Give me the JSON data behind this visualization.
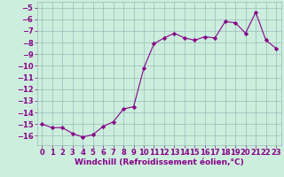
{
  "x": [
    0,
    1,
    2,
    3,
    4,
    5,
    6,
    7,
    8,
    9,
    10,
    11,
    12,
    13,
    14,
    15,
    16,
    17,
    18,
    19,
    20,
    21,
    22,
    23
  ],
  "y": [
    -15.0,
    -15.3,
    -15.3,
    -15.8,
    -16.1,
    -15.9,
    -15.2,
    -14.8,
    -13.7,
    -13.5,
    -10.2,
    -8.1,
    -7.6,
    -7.2,
    -7.6,
    -7.8,
    -7.5,
    -7.6,
    -6.2,
    -6.3,
    -7.2,
    -5.4,
    -7.8,
    -8.5
  ],
  "line_color": "#880088",
  "marker": "D",
  "marker_size": 2.2,
  "bg_color": "#cceedd",
  "grid_color": "#99bbbb",
  "xlabel": "Windchill (Refroidissement éolien,°C)",
  "ylim": [
    -16.8,
    -4.5
  ],
  "xlim": [
    -0.5,
    23.5
  ],
  "yticks": [
    -16,
    -15,
    -14,
    -13,
    -12,
    -11,
    -10,
    -9,
    -8,
    -7,
    -6,
    -5
  ],
  "xticks": [
    0,
    1,
    2,
    3,
    4,
    5,
    6,
    7,
    8,
    9,
    10,
    11,
    12,
    13,
    14,
    15,
    16,
    17,
    18,
    19,
    20,
    21,
    22,
    23
  ],
  "tick_fontsize": 6.0,
  "xlabel_fontsize": 6.5
}
